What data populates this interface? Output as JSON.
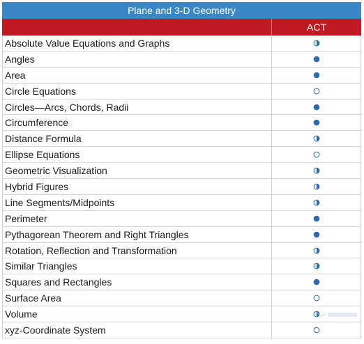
{
  "table": {
    "title": "Plane and 3-D Geometry",
    "column_header": "ACT",
    "rows": [
      {
        "topic": "Absolute Value Equations and Graphs",
        "coverage": "half-icon"
      },
      {
        "topic": "Angles",
        "coverage": "full-icon"
      },
      {
        "topic": "Area",
        "coverage": "full-icon"
      },
      {
        "topic": "Circle Equations",
        "coverage": "empty-icon"
      },
      {
        "topic": "Circles—Arcs, Chords, Radii",
        "coverage": "full-icon"
      },
      {
        "topic": "Circumference",
        "coverage": "full-icon"
      },
      {
        "topic": "Distance Formula",
        "coverage": "half-icon"
      },
      {
        "topic": "Ellipse Equations",
        "coverage": "empty-icon"
      },
      {
        "topic": "Geometric Visualization",
        "coverage": "half-icon"
      },
      {
        "topic": "Hybrid Figures",
        "coverage": "half-icon"
      },
      {
        "topic": "Line Segments/Midpoints",
        "coverage": "half-icon"
      },
      {
        "topic": "Perimeter",
        "coverage": "full-icon"
      },
      {
        "topic": "Pythagorean Theorem and Right Triangles",
        "coverage": "full-icon"
      },
      {
        "topic": "Rotation, Reflection and Transformation",
        "coverage": "half-icon"
      },
      {
        "topic": "Similar Triangles",
        "coverage": "half-icon"
      },
      {
        "topic": "Squares and Rectangles",
        "coverage": "full-icon"
      },
      {
        "topic": "Surface Area",
        "coverage": "empty-icon"
      },
      {
        "topic": "Volume",
        "coverage": "half-icon"
      },
      {
        "topic": "xyz-Coordinate System",
        "coverage": "empty-icon"
      }
    ]
  },
  "colors": {
    "title_bg": "#3a87c8",
    "header_bg": "#c11a22",
    "marker": "#2b6cb0"
  }
}
